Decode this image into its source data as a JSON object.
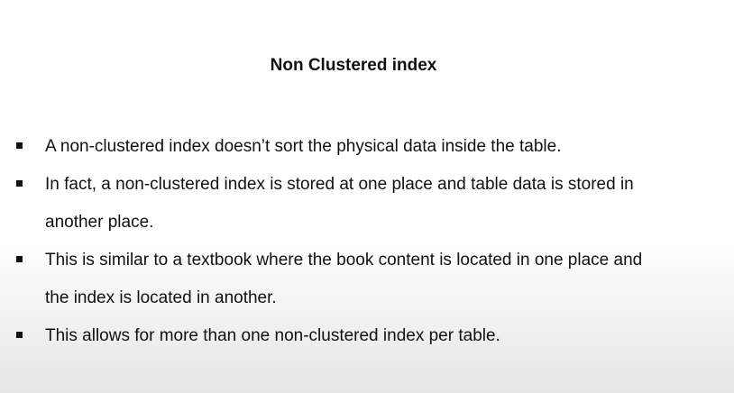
{
  "slide": {
    "title": "Non Clustered index",
    "bullets": [
      {
        "lines": [
          "A non-clustered index doesn’t sort the physical data inside the table."
        ]
      },
      {
        "lines": [
          "In fact, a non-clustered index is stored at one place and table data is stored in",
          "another place."
        ]
      },
      {
        "lines": [
          "This is similar to a textbook where the book content is located in one place and",
          "the index is located in another."
        ]
      },
      {
        "lines": [
          "This allows for more than one non-clustered index per table."
        ]
      }
    ]
  },
  "colors": {
    "text": "#111111",
    "background": "#ffffff"
  }
}
